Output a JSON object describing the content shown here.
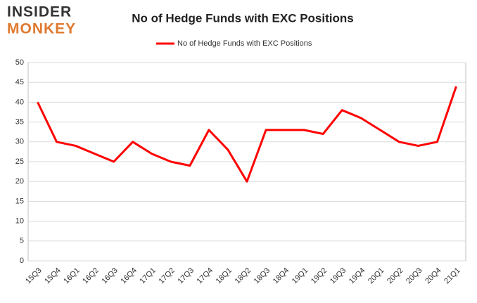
{
  "logo": {
    "line1": "INSIDER",
    "line2": "MONKEY"
  },
  "chart_data": {
    "type": "line",
    "title": "No of Hedge Funds with EXC Positions",
    "categories": [
      "15Q3",
      "15Q4",
      "16Q1",
      "16Q2",
      "16Q3",
      "16Q4",
      "17Q1",
      "17Q2",
      "17Q3",
      "17Q4",
      "18Q1",
      "18Q2",
      "18Q3",
      "18Q4",
      "19Q1",
      "19Q2",
      "19Q3",
      "19Q4",
      "20Q1",
      "20Q2",
      "20Q3",
      "20Q4",
      "21Q1"
    ],
    "series": [
      {
        "name": "No of Hedge Funds with EXC Positions",
        "color": "#ff0000",
        "values": [
          40,
          30,
          29,
          27,
          25,
          30,
          27,
          25,
          24,
          33,
          28,
          20,
          33,
          33,
          33,
          32,
          38,
          36,
          33,
          30,
          29,
          30,
          44
        ]
      }
    ],
    "ylim": [
      0,
      50
    ],
    "yticks": [
      0,
      5,
      10,
      15,
      20,
      25,
      30,
      35,
      40,
      45,
      50
    ],
    "grid": true,
    "legend": "top"
  }
}
